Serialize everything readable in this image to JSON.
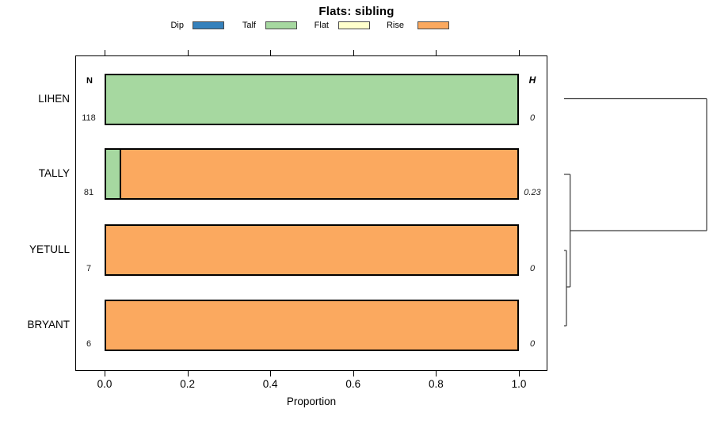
{
  "title": "Flats: sibling",
  "legend": {
    "items": [
      {
        "label": "Dip",
        "color": "#3581bc"
      },
      {
        "label": "Talf",
        "color": "#a6d8a0"
      },
      {
        "label": "Flat",
        "color": "#ffffcc"
      },
      {
        "label": "Rise",
        "color": "#fba95f"
      }
    ]
  },
  "chart_data": {
    "type": "bar",
    "orientation": "horizontal-stacked",
    "title": "Flats: sibling",
    "xlabel": "Proportion",
    "xlim": [
      0,
      1
    ],
    "x_ticks": [
      0,
      0.2,
      0.4,
      0.6,
      0.8,
      1.0
    ],
    "x_tick_labels": [
      "0.0",
      "0.2",
      "0.4",
      "0.6",
      "0.8",
      "1.0"
    ],
    "legend_categories": [
      "Dip",
      "Talf",
      "Flat",
      "Rise"
    ],
    "columns": {
      "n_header": "N",
      "h_header": "H"
    },
    "rows": [
      {
        "label": "LIHEN",
        "n": "118",
        "h": "0",
        "segments": [
          {
            "category": "Talf",
            "value": 1.0
          }
        ]
      },
      {
        "label": "TALLY",
        "n": "81",
        "h": "0.23",
        "segments": [
          {
            "category": "Talf",
            "value": 0.037
          },
          {
            "category": "Rise",
            "value": 0.963
          }
        ]
      },
      {
        "label": "YETULL",
        "n": "7",
        "h": "0",
        "segments": [
          {
            "category": "Rise",
            "value": 1.0
          }
        ]
      },
      {
        "label": "BRYANT",
        "n": "6",
        "h": "0",
        "segments": [
          {
            "category": "Rise",
            "value": 1.0
          }
        ]
      }
    ],
    "dendrogram": {
      "description": "cluster tree joining YETULL+BRYANT, then TALLY, then LIHEN",
      "segments": [
        [
          712,
          124.5,
          892,
          124.5
        ],
        [
          892,
          124.5,
          892,
          291
        ],
        [
          719.7,
          291,
          892,
          291
        ],
        [
          719.7,
          220,
          719.7,
          362
        ],
        [
          712,
          220,
          719.7,
          220
        ],
        [
          715,
          316,
          715,
          411
        ],
        [
          712,
          316,
          715,
          316
        ],
        [
          712,
          411,
          715,
          411
        ],
        [
          715,
          362,
          719.7,
          362
        ]
      ]
    }
  }
}
